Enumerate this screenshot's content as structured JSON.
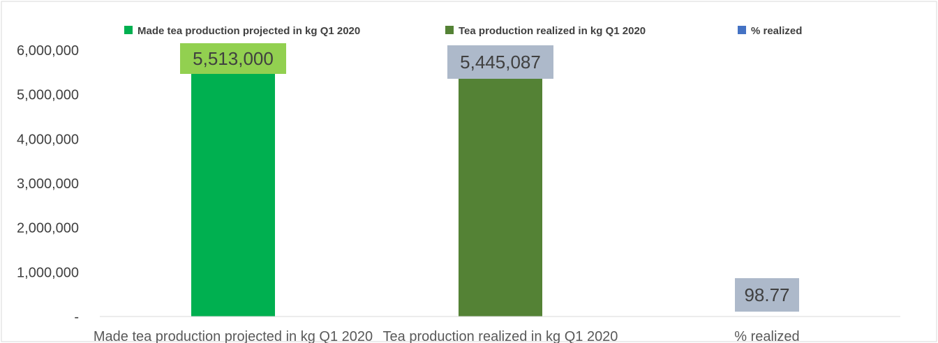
{
  "chart_data": {
    "type": "bar",
    "categories": [
      "Made tea production  projected  in kg  Q1 2020",
      "Tea production realized in kg Q1 2020",
      "% realized"
    ],
    "values": [
      5513000,
      5445087,
      98.77
    ],
    "data_labels": [
      "5,513,000",
      "5,445,087",
      "98.77"
    ],
    "bar_colors": [
      "#00b050",
      "#548235",
      "#4472c4"
    ],
    "label_backgrounds": [
      "#92d050",
      "#adb9ca",
      "#adb9ca"
    ],
    "ylim": [
      0,
      6000000
    ],
    "yticks": [
      {
        "value": 0,
        "label": "-"
      },
      {
        "value": 1000000,
        "label": "1,000,000"
      },
      {
        "value": 2000000,
        "label": "2,000,000"
      },
      {
        "value": 3000000,
        "label": "3,000,000"
      },
      {
        "value": 4000000,
        "label": "4,000,000"
      },
      {
        "value": 5000000,
        "label": "5,000,000"
      },
      {
        "value": 6000000,
        "label": "6,000,000"
      }
    ],
    "legend": {
      "placement": "top",
      "entries": [
        {
          "name": "Made tea production  projected  in kg  Q1 2020",
          "color": "#00b050"
        },
        {
          "name": "Tea production realized in kg Q1 2020",
          "color": "#548235"
        },
        {
          "name": "% realized",
          "color": "#4472c4"
        }
      ]
    },
    "grid": false,
    "title": "",
    "xlabel": "",
    "ylabel": ""
  }
}
